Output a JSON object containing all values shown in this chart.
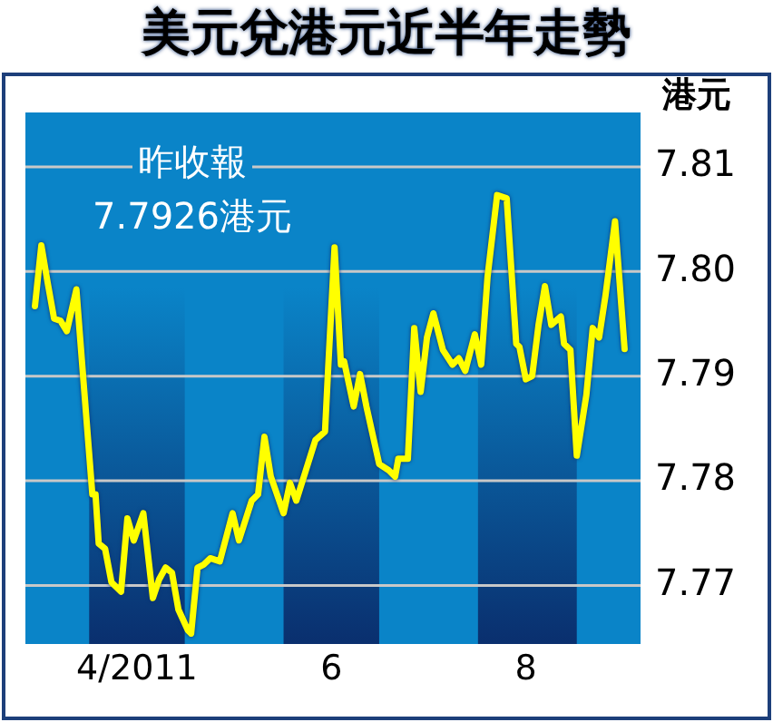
{
  "chart_data": {
    "type": "line",
    "title": "美元兌港元近半年走勢",
    "ylabel": "港元",
    "annotations": [
      "昨收報",
      "7.7926港元"
    ],
    "x": [
      "2011-03-15",
      "2011-03-17",
      "2011-03-19",
      "2011-03-21",
      "2011-03-23",
      "2011-03-25",
      "2011-03-28",
      "2011-03-29",
      "2011-04-02",
      "2011-04-03",
      "2011-04-04",
      "2011-04-06",
      "2011-04-08",
      "2011-04-11",
      "2011-04-13",
      "2011-04-15",
      "2011-04-18",
      "2011-04-21",
      "2011-04-23",
      "2011-04-25",
      "2011-04-27",
      "2011-04-29",
      "2011-05-02",
      "2011-05-03",
      "2011-05-05",
      "2011-05-07",
      "2011-05-09",
      "2011-05-12",
      "2011-05-16",
      "2011-05-18",
      "2011-05-22",
      "2011-05-24",
      "2011-05-26",
      "2011-05-28",
      "2011-06-01",
      "2011-06-03",
      "2011-06-05",
      "2011-06-08",
      "2011-06-11",
      "2011-06-14",
      "2011-06-15",
      "2011-06-17",
      "2011-06-19",
      "2011-06-20",
      "2011-06-23",
      "2011-06-25",
      "2011-06-27",
      "2011-07-01",
      "2011-07-04",
      "2011-07-06",
      "2011-07-07",
      "2011-07-10",
      "2011-07-12",
      "2011-07-14",
      "2011-07-16",
      "2011-07-18",
      "2011-07-21",
      "2011-07-24",
      "2011-07-26",
      "2011-07-28",
      "2011-07-31",
      "2011-08-02",
      "2011-08-04",
      "2011-08-07",
      "2011-08-10",
      "2011-08-13",
      "2011-08-14",
      "2011-08-16",
      "2011-08-18",
      "2011-08-20",
      "2011-08-22",
      "2011-08-24",
      "2011-08-27",
      "2011-08-28",
      "2011-08-30",
      "2011-09-01",
      "2011-09-04",
      "2011-09-06",
      "2011-09-08",
      "2011-09-10",
      "2011-09-13",
      "2011-09-16"
    ],
    "series": [
      {
        "color": "#ffff00",
        "values": [
          7.7967,
          7.8025,
          7.7989,
          7.7955,
          7.7953,
          7.7943,
          7.7983,
          7.7943,
          7.7787,
          7.7787,
          7.774,
          7.7735,
          7.7703,
          7.7694,
          7.7764,
          7.7743,
          7.7769,
          7.7688,
          7.7706,
          7.7717,
          7.7712,
          7.7677,
          7.7657,
          7.7654,
          7.7717,
          7.772,
          7.7726,
          7.7723,
          7.7769,
          7.7743,
          7.7781,
          7.7787,
          7.7842,
          7.7804,
          7.7769,
          7.7798,
          7.7781,
          7.781,
          7.7839,
          7.7847,
          7.7908,
          7.8023,
          7.7911,
          7.7914,
          7.7871,
          7.7902,
          7.7871,
          7.7816,
          7.781,
          7.7804,
          7.7821,
          7.7821,
          7.7946,
          7.7885,
          7.7937,
          7.796,
          7.7925,
          7.7911,
          7.7917,
          7.7905,
          7.794,
          7.7911,
          7.7995,
          7.8073,
          7.807,
          7.7931,
          7.7928,
          7.7897,
          7.79,
          7.7949,
          7.7986,
          7.7949,
          7.7957,
          7.7931,
          7.7925,
          7.7824,
          7.7882,
          7.7946,
          7.7937,
          7.7977,
          7.8048,
          7.7926
        ]
      }
    ],
    "xlim": [
      "2011-03-12",
      "2011-09-21"
    ],
    "xticks": [
      {
        "value": "2011-04-16",
        "label": "4/2011"
      },
      {
        "value": "2011-06-16",
        "label": "6"
      },
      {
        "value": "2011-08-16",
        "label": "8"
      }
    ],
    "ylim": [
      7.7644,
      7.8152
    ],
    "yticks": [
      7.77,
      7.78,
      7.79,
      {
        "value": 7.8,
        "label": "7.80"
      },
      7.81
    ],
    "bands": [
      {
        "axis": "x",
        "from": "2011-04-01",
        "to": "2011-05-01",
        "color": "#0a2f6e"
      },
      {
        "axis": "x",
        "from": "2011-06-01",
        "to": "2011-07-01",
        "color": "#0a2f6e"
      },
      {
        "axis": "x",
        "from": "2011-08-01",
        "to": "2011-09-01",
        "color": "#0a2f6e"
      }
    ],
    "grid": "y",
    "legend": false,
    "marker": "none",
    "line_style": "solid"
  }
}
